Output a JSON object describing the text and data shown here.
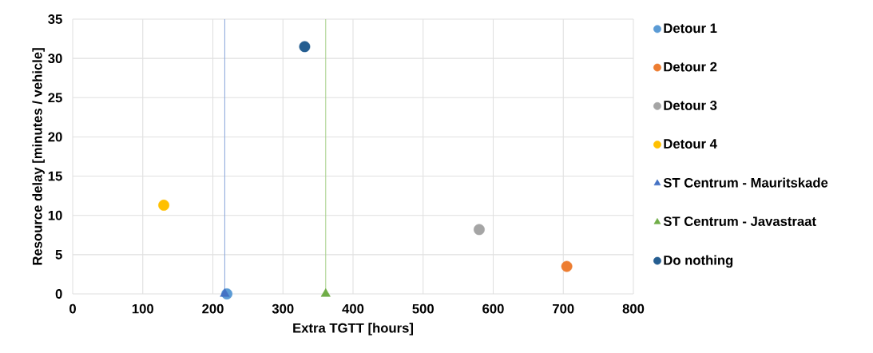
{
  "chart_data": {
    "type": "scatter",
    "xlabel": "Extra TGTT [hours]",
    "ylabel": "Resource delay [minutes / vehicle]",
    "xlim": [
      0,
      800
    ],
    "xticks": [
      0,
      100,
      200,
      300,
      400,
      500,
      600,
      700,
      800
    ],
    "ylim": [
      0,
      35
    ],
    "yticks": [
      0,
      5,
      10,
      15,
      20,
      25,
      30,
      35
    ],
    "grid": true,
    "legend": "right",
    "series": [
      {
        "name": "Detour 1",
        "color": "#5b9bd5",
        "marker": "circle",
        "x": [
          220
        ],
        "values": [
          0
        ]
      },
      {
        "name": "Detour 2",
        "color": "#ed7d31",
        "marker": "circle",
        "x": [
          705
        ],
        "values": [
          3.5
        ]
      },
      {
        "name": "Detour 3",
        "color": "#a5a5a5",
        "marker": "circle",
        "x": [
          580
        ],
        "values": [
          8.2
        ]
      },
      {
        "name": "Detour 4",
        "color": "#ffc000",
        "marker": "circle",
        "x": [
          130
        ],
        "values": [
          11.3
        ]
      },
      {
        "name": "ST Centrum - Mauritskade",
        "color": "#4472c4",
        "marker": "triangle",
        "x": [
          217
        ],
        "values": [
          0
        ]
      },
      {
        "name": "ST Centrum - Javastraat",
        "color": "#70ad47",
        "marker": "triangle",
        "x": [
          361
        ],
        "values": [
          0
        ]
      },
      {
        "name": "Do nothing",
        "color": "#255e91",
        "marker": "circle",
        "x": [
          331
        ],
        "values": [
          31.5
        ]
      }
    ],
    "ref_lines": [
      {
        "axis": "x",
        "value": 217,
        "color": "#8faadc"
      },
      {
        "axis": "x",
        "value": 361,
        "color": "#a9d18e"
      }
    ]
  }
}
